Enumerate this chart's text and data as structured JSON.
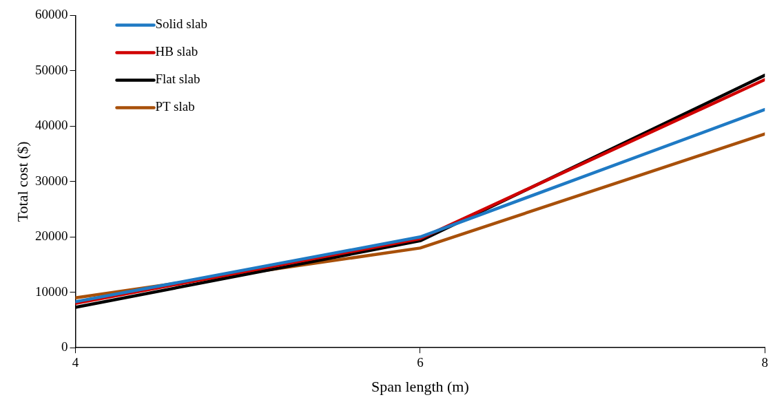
{
  "chart_data": {
    "type": "line",
    "xlabel": "Span length (m)",
    "ylabel": "Total cost ($)",
    "x": [
      4,
      6,
      8
    ],
    "xlim": [
      4,
      8
    ],
    "xticks": [
      4,
      6,
      8
    ],
    "ylim": [
      0,
      60000
    ],
    "yticks": [
      0,
      10000,
      20000,
      30000,
      40000,
      50000,
      60000
    ],
    "series": [
      {
        "name": "Solid slab",
        "color": "#1f7ac4",
        "values": [
          8300,
          20000,
          43000
        ]
      },
      {
        "name": "HB slab",
        "color": "#d00000",
        "values": [
          8000,
          19700,
          48400
        ]
      },
      {
        "name": "Flat slab",
        "color": "#000000",
        "values": [
          7300,
          19300,
          49200
        ]
      },
      {
        "name": "PT slab",
        "color": "#a8500a",
        "values": [
          9000,
          18000,
          38600
        ]
      }
    ],
    "grid": false,
    "legend": "top left",
    "marker": "none",
    "line_style": "solid"
  }
}
